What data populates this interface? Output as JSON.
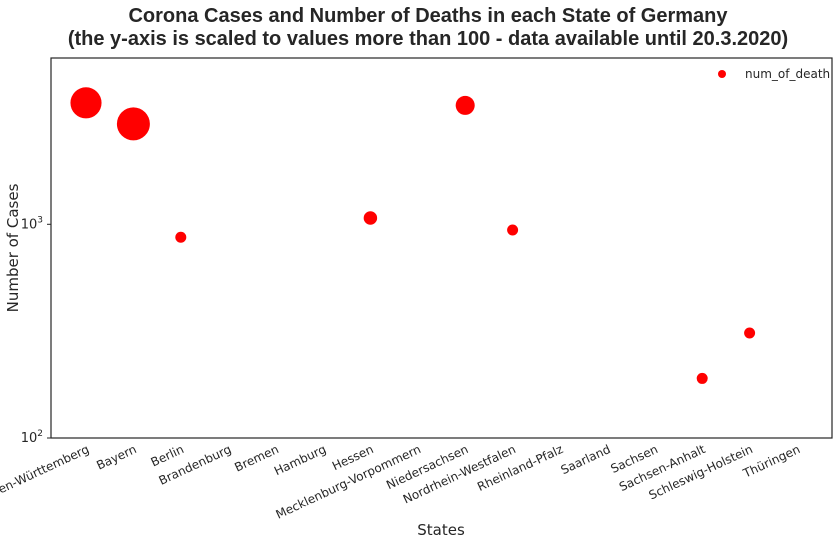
{
  "chart_data": {
    "type": "scatter",
    "title_line1": "Corona Cases and Number of Deaths in each State of Germany",
    "title_line2": "(the y-axis is scaled to values more than 100 - data available until 20.3.2020)",
    "xlabel": "States",
    "ylabel": "Number of Cases",
    "yscale": "log",
    "ylim": [
      100,
      6000
    ],
    "yticks": [
      {
        "value": 100,
        "base": "10",
        "exp": "2"
      },
      {
        "value": 1000,
        "base": "10",
        "exp": "3"
      }
    ],
    "categories": [
      "Baden-Württemberg",
      "Bayern",
      "Berlin",
      "Brandenburg",
      "Bremen",
      "Hamburg",
      "Hessen",
      "Mecklenburg-Vorpommern",
      "Niedersachsen",
      "Nordrhein-Westfalen",
      "Rheinland-Pfalz",
      "Saarland",
      "Sachsen",
      "Sachsen-Anhalt",
      "Schleswig-Holstein",
      "Thüringen"
    ],
    "series": [
      {
        "name": "num_of_death",
        "color": "#ff0000",
        "points": [
          {
            "category": "Baden-Württemberg",
            "value": 3700,
            "size": 8
          },
          {
            "category": "Bayern",
            "value": 2950,
            "size": 9
          },
          {
            "category": "Berlin",
            "value": 870,
            "size": 1
          },
          {
            "category": "Hessen",
            "value": 1070,
            "size": 1.5
          },
          {
            "category": "Niedersachsen",
            "value": 3600,
            "size": 3
          },
          {
            "category": "Nordrhein-Westfalen",
            "value": 940,
            "size": 1
          },
          {
            "category": "Sachsen-Anhalt",
            "value": 190,
            "size": 1
          },
          {
            "category": "Schleswig-Holstein",
            "value": 310,
            "size": 1
          }
        ]
      }
    ],
    "legend": {
      "position": "top-right",
      "label": "num_of_death"
    }
  }
}
